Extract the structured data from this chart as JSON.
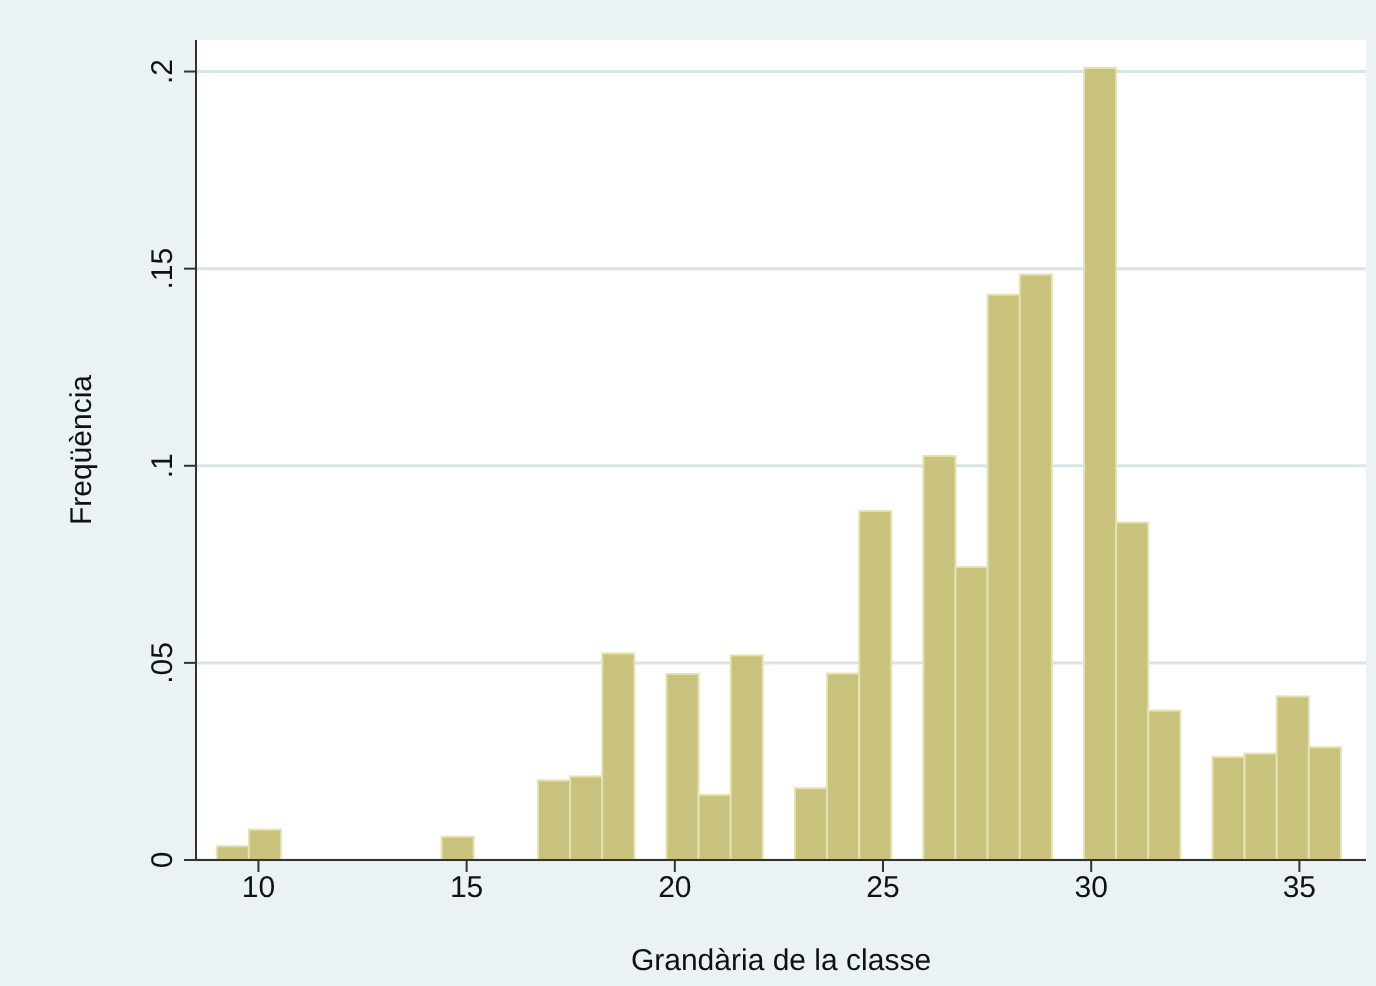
{
  "chart_data": {
    "type": "histogram",
    "xlabel": "Grandària de la classe",
    "ylabel": "Freqüència",
    "bins": [
      9,
      9.771,
      10.543,
      11.314,
      12.086,
      12.857,
      13.629,
      14.4,
      15.171,
      15.943,
      16.714,
      17.486,
      18.257,
      19.029,
      19.8,
      20.571,
      21.343,
      22.114,
      22.886,
      23.657,
      24.429,
      25.2,
      25.971,
      26.743,
      27.514,
      28.286,
      29.057,
      29.829,
      30.6,
      31.371,
      32.143,
      32.914,
      33.686,
      34.457,
      35.229,
      36
    ],
    "values": [
      0.0035,
      0.0077,
      0,
      0,
      0,
      0,
      0,
      0.0059,
      0,
      0,
      0.0202,
      0.0212,
      0.0524,
      0,
      0.0472,
      0.0165,
      0.0519,
      0,
      0.0182,
      0.0473,
      0.0885,
      0,
      0.1025,
      0.0743,
      0.1434,
      0.1485,
      0,
      0.2009,
      0.0856,
      0.0379,
      0,
      0.0261,
      0.027,
      0.0415,
      0.0286
    ],
    "color": "#c9c27d",
    "xlim": [
      8.5,
      36.6
    ],
    "xticks": [
      10,
      15,
      20,
      25,
      30,
      35
    ],
    "ylim": [
      0,
      0.208
    ],
    "yticks": [
      {
        "value": 0,
        "label": "0"
      },
      {
        "value": 0.05,
        "label": ".05"
      },
      {
        "value": 0.1,
        "label": ".1"
      },
      {
        "value": 0.15,
        "label": ".15"
      },
      {
        "value": 0.2,
        "label": ".2"
      }
    ],
    "grid": "y"
  }
}
